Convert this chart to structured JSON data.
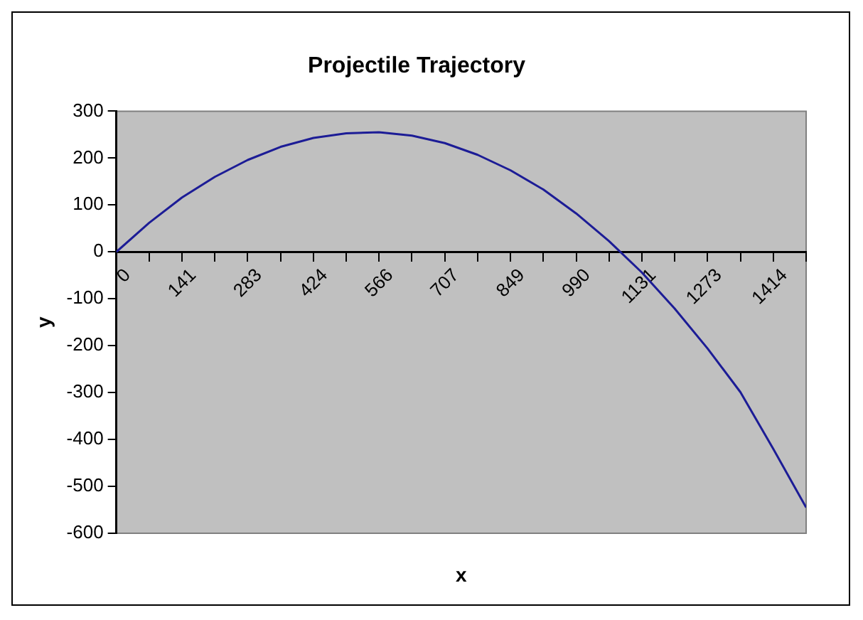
{
  "chart_data": {
    "type": "line",
    "title": "Projectile Trajectory",
    "xlabel": "x",
    "ylabel": "y",
    "x": [
      0,
      70.7,
      141.4,
      212.1,
      282.8,
      353.6,
      424.3,
      495,
      565.7,
      636.4,
      707.1,
      777.8,
      848.5,
      919.2,
      990,
      1060.7,
      1131.4,
      1202,
      1272.8,
      1343.5,
      1414.2,
      1485
    ],
    "series": [
      {
        "color": "#1c1c96",
        "values": [
          0,
          62,
          116,
          160,
          196,
          224,
          243,
          253,
          255,
          248,
          232,
          207,
          174,
          133,
          82,
          23,
          -44,
          -121,
          -206,
          -299,
          -420,
          -545
        ]
      }
    ],
    "xlim": [
      0,
      1485
    ],
    "xticks": [
      {
        "value": 0,
        "label": "0"
      },
      {
        "value": 70.7,
        "label": null
      },
      {
        "value": 141.4,
        "label": "141"
      },
      {
        "value": 212.1,
        "label": null
      },
      {
        "value": 282.8,
        "label": "283"
      },
      {
        "value": 353.6,
        "label": null
      },
      {
        "value": 424.3,
        "label": "424"
      },
      {
        "value": 495,
        "label": null
      },
      {
        "value": 565.7,
        "label": "566"
      },
      {
        "value": 636.4,
        "label": null
      },
      {
        "value": 707.1,
        "label": "707"
      },
      {
        "value": 777.8,
        "label": null
      },
      {
        "value": 848.5,
        "label": "849"
      },
      {
        "value": 919.2,
        "label": null
      },
      {
        "value": 990,
        "label": "990"
      },
      {
        "value": 1060.7,
        "label": null
      },
      {
        "value": 1131.4,
        "label": "1131"
      },
      {
        "value": 1202,
        "label": null
      },
      {
        "value": 1272.8,
        "label": "1273"
      },
      {
        "value": 1343.5,
        "label": null
      },
      {
        "value": 1414.2,
        "label": "1414"
      },
      {
        "value": 1485,
        "label": null
      }
    ],
    "ylim": [
      -600,
      300
    ],
    "yticks": [
      -600,
      -500,
      -400,
      -300,
      -200,
      -100,
      0,
      100,
      200,
      300
    ],
    "grid": false,
    "legend": false,
    "marker": "none",
    "line_style": "solid"
  }
}
